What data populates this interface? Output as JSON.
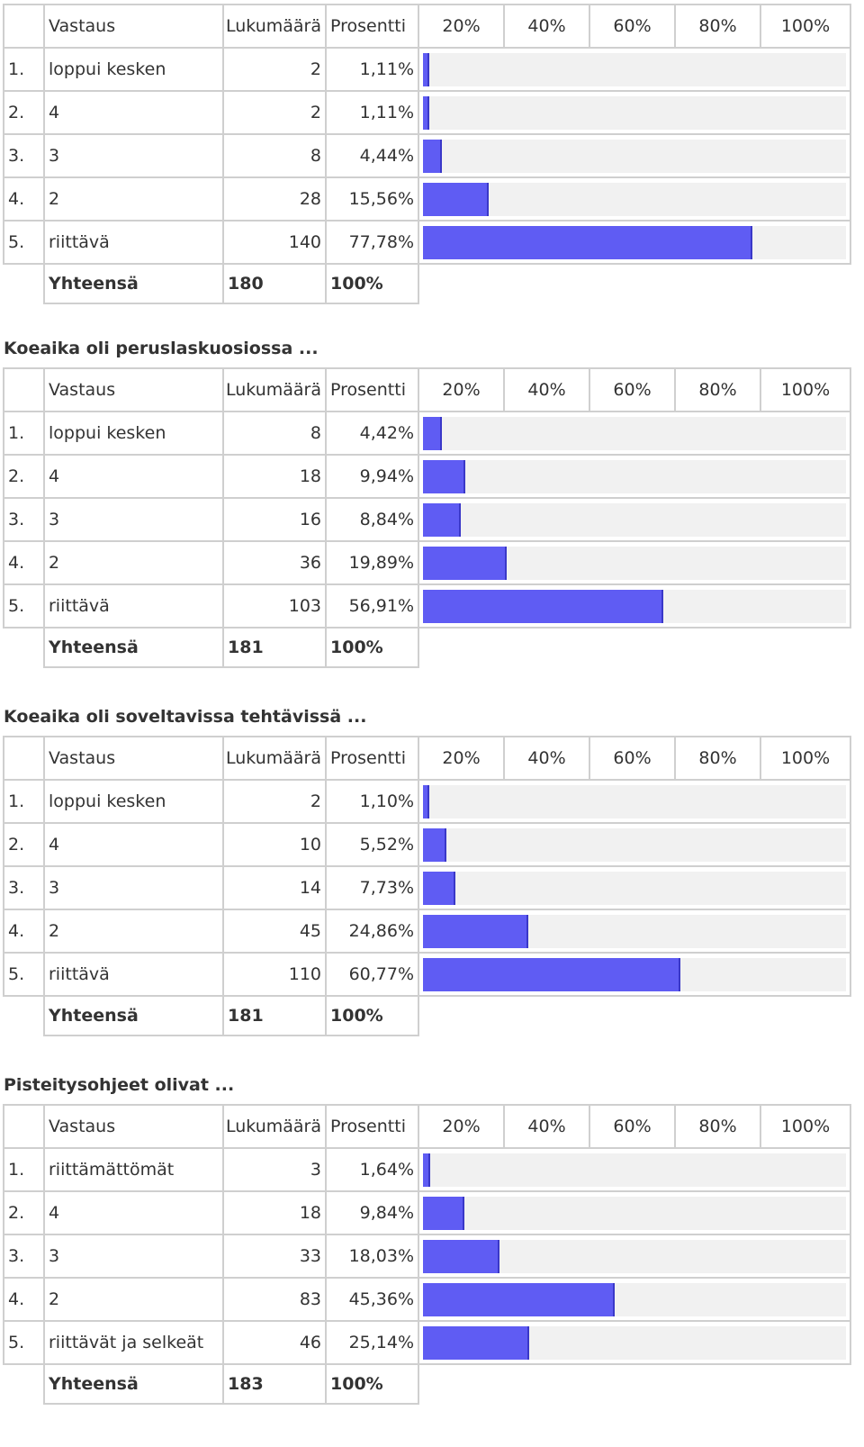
{
  "header": {
    "answer": "Vastaus",
    "count": "Lukumäärä",
    "percent": "Prosentti",
    "scale": [
      "20%",
      "40%",
      "60%",
      "80%",
      "100%"
    ]
  },
  "total_label": "Yhteensä",
  "colors": {
    "bar": "#5f5cf3",
    "track": "#f1f1f1",
    "border": "#cfcfcf"
  },
  "sections": [
    {
      "title": "",
      "rows": [
        {
          "num": "1.",
          "answer": "loppui kesken",
          "count": "2",
          "percent": "1,11%",
          "value": 1.11
        },
        {
          "num": "2.",
          "answer": "4",
          "count": "2",
          "percent": "1,11%",
          "value": 1.11
        },
        {
          "num": "3.",
          "answer": "3",
          "count": "8",
          "percent": "4,44%",
          "value": 4.44
        },
        {
          "num": "4.",
          "answer": "2",
          "count": "28",
          "percent": "15,56%",
          "value": 15.56
        },
        {
          "num": "5.",
          "answer": "riittävä",
          "count": "140",
          "percent": "77,78%",
          "value": 77.78
        }
      ],
      "total": {
        "count": "180",
        "percent": "100%"
      }
    },
    {
      "title": "Koeaika oli peruslaskuosiossa ...",
      "rows": [
        {
          "num": "1.",
          "answer": "loppui kesken",
          "count": "8",
          "percent": "4,42%",
          "value": 4.42
        },
        {
          "num": "2.",
          "answer": "4",
          "count": "18",
          "percent": "9,94%",
          "value": 9.94
        },
        {
          "num": "3.",
          "answer": "3",
          "count": "16",
          "percent": "8,84%",
          "value": 8.84
        },
        {
          "num": "4.",
          "answer": "2",
          "count": "36",
          "percent": "19,89%",
          "value": 19.89
        },
        {
          "num": "5.",
          "answer": "riittävä",
          "count": "103",
          "percent": "56,91%",
          "value": 56.91
        }
      ],
      "total": {
        "count": "181",
        "percent": "100%"
      }
    },
    {
      "title": "Koeaika oli soveltavissa tehtävissä ...",
      "rows": [
        {
          "num": "1.",
          "answer": "loppui kesken",
          "count": "2",
          "percent": "1,10%",
          "value": 1.1
        },
        {
          "num": "2.",
          "answer": "4",
          "count": "10",
          "percent": "5,52%",
          "value": 5.52
        },
        {
          "num": "3.",
          "answer": "3",
          "count": "14",
          "percent": "7,73%",
          "value": 7.73
        },
        {
          "num": "4.",
          "answer": "2",
          "count": "45",
          "percent": "24,86%",
          "value": 24.86
        },
        {
          "num": "5.",
          "answer": "riittävä",
          "count": "110",
          "percent": "60,77%",
          "value": 60.77
        }
      ],
      "total": {
        "count": "181",
        "percent": "100%"
      }
    },
    {
      "title": "Pisteitysohjeet olivat ...",
      "rows": [
        {
          "num": "1.",
          "answer": "riittämättömät",
          "count": "3",
          "percent": "1,64%",
          "value": 1.64
        },
        {
          "num": "2.",
          "answer": "4",
          "count": "18",
          "percent": "9,84%",
          "value": 9.84
        },
        {
          "num": "3.",
          "answer": "3",
          "count": "33",
          "percent": "18,03%",
          "value": 18.03
        },
        {
          "num": "4.",
          "answer": "2",
          "count": "83",
          "percent": "45,36%",
          "value": 45.36
        },
        {
          "num": "5.",
          "answer": "riittävät ja selkeät",
          "count": "46",
          "percent": "25,14%",
          "value": 25.14
        }
      ],
      "total": {
        "count": "183",
        "percent": "100%"
      }
    }
  ]
}
